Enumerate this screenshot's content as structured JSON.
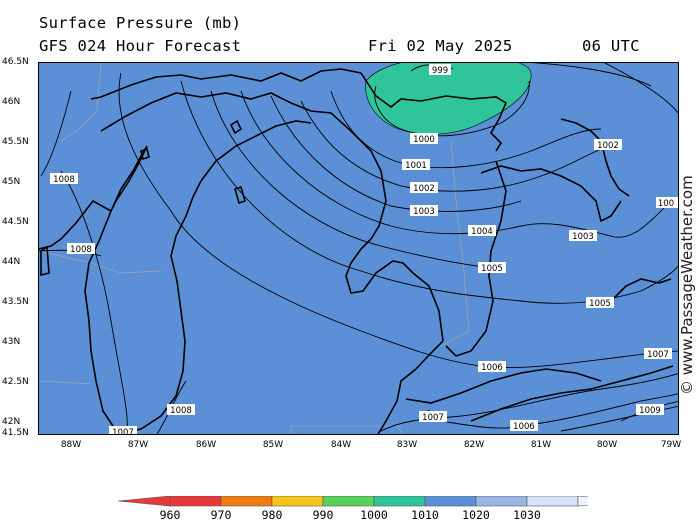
{
  "header": {
    "title": "Surface Pressure (mb)",
    "forecast": "GFS 024 Hour Forecast",
    "date": "Fri 02 May 2025",
    "time": "06 UTC"
  },
  "axes": {
    "lat_labels": [
      "46.5N",
      "46N",
      "45.5N",
      "45N",
      "44.5N",
      "44N",
      "43.5N",
      "43N",
      "42.5N",
      "42N",
      "41.5N"
    ],
    "lon_labels": [
      "88W",
      "87W",
      "86W",
      "85W",
      "84W",
      "83W",
      "82W",
      "81W",
      "80W",
      "79W"
    ]
  },
  "isobars": [
    "999",
    "1000",
    "1001",
    "1002",
    "1003",
    "1004",
    "1005",
    "1006",
    "1007",
    "1008",
    "1009",
    "1005",
    "1002",
    "1003",
    "1007",
    "1006",
    "1008",
    "1008",
    "1008",
    "1007",
    "100"
  ],
  "watermark": "© www.PassageWeather.com",
  "colorbar": {
    "labels": [
      "960",
      "970",
      "980",
      "990",
      "1000",
      "1010",
      "1020",
      "1030"
    ],
    "colors": [
      "#e8383a",
      "#f07c10",
      "#f5c518",
      "#58d35a",
      "#2fc49a",
      "#5b8fd6",
      "#98b6e6",
      "#d8e4f6"
    ]
  },
  "colors": {
    "ocean_fill": "#5b8fd6",
    "low_pressure_fill": "#2fc49a"
  }
}
